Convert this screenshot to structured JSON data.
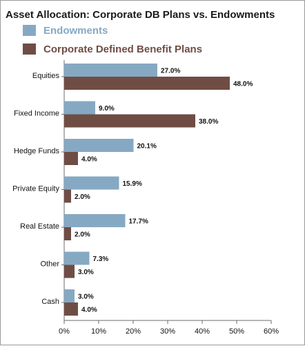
{
  "chart_data": {
    "type": "bar",
    "orientation": "horizontal",
    "title": "Asset Allocation: Corporate DB Plans vs. Endowments",
    "categories": [
      "Equities",
      "Fixed Income",
      "Hedge Funds",
      "Private Equity",
      "Real Estate",
      "Other",
      "Cash"
    ],
    "series": [
      {
        "name": "Endowments",
        "color": "#86a9c3",
        "values": [
          27.0,
          9.0,
          20.1,
          15.9,
          17.7,
          7.3,
          3.0
        ],
        "labels": [
          "27.0%",
          "9.0%",
          "20.1%",
          "15.9%",
          "17.7%",
          "7.3%",
          "3.0%"
        ]
      },
      {
        "name": "Corporate Defined Benefit Plans",
        "color": "#6f4d45",
        "values": [
          48.0,
          38.0,
          4.0,
          2.0,
          2.0,
          3.0,
          4.0
        ],
        "labels": [
          "48.0%",
          "38.0%",
          "4.0%",
          "2.0%",
          "2.0%",
          "3.0%",
          "4.0%"
        ]
      }
    ],
    "xlim": [
      0,
      60
    ],
    "xticks": [
      0,
      10,
      20,
      30,
      40,
      50,
      60
    ],
    "xtick_labels": [
      "0%",
      "10%",
      "20%",
      "30%",
      "40%",
      "50%",
      "60%"
    ],
    "legend_position": "top-left",
    "grid": false
  }
}
